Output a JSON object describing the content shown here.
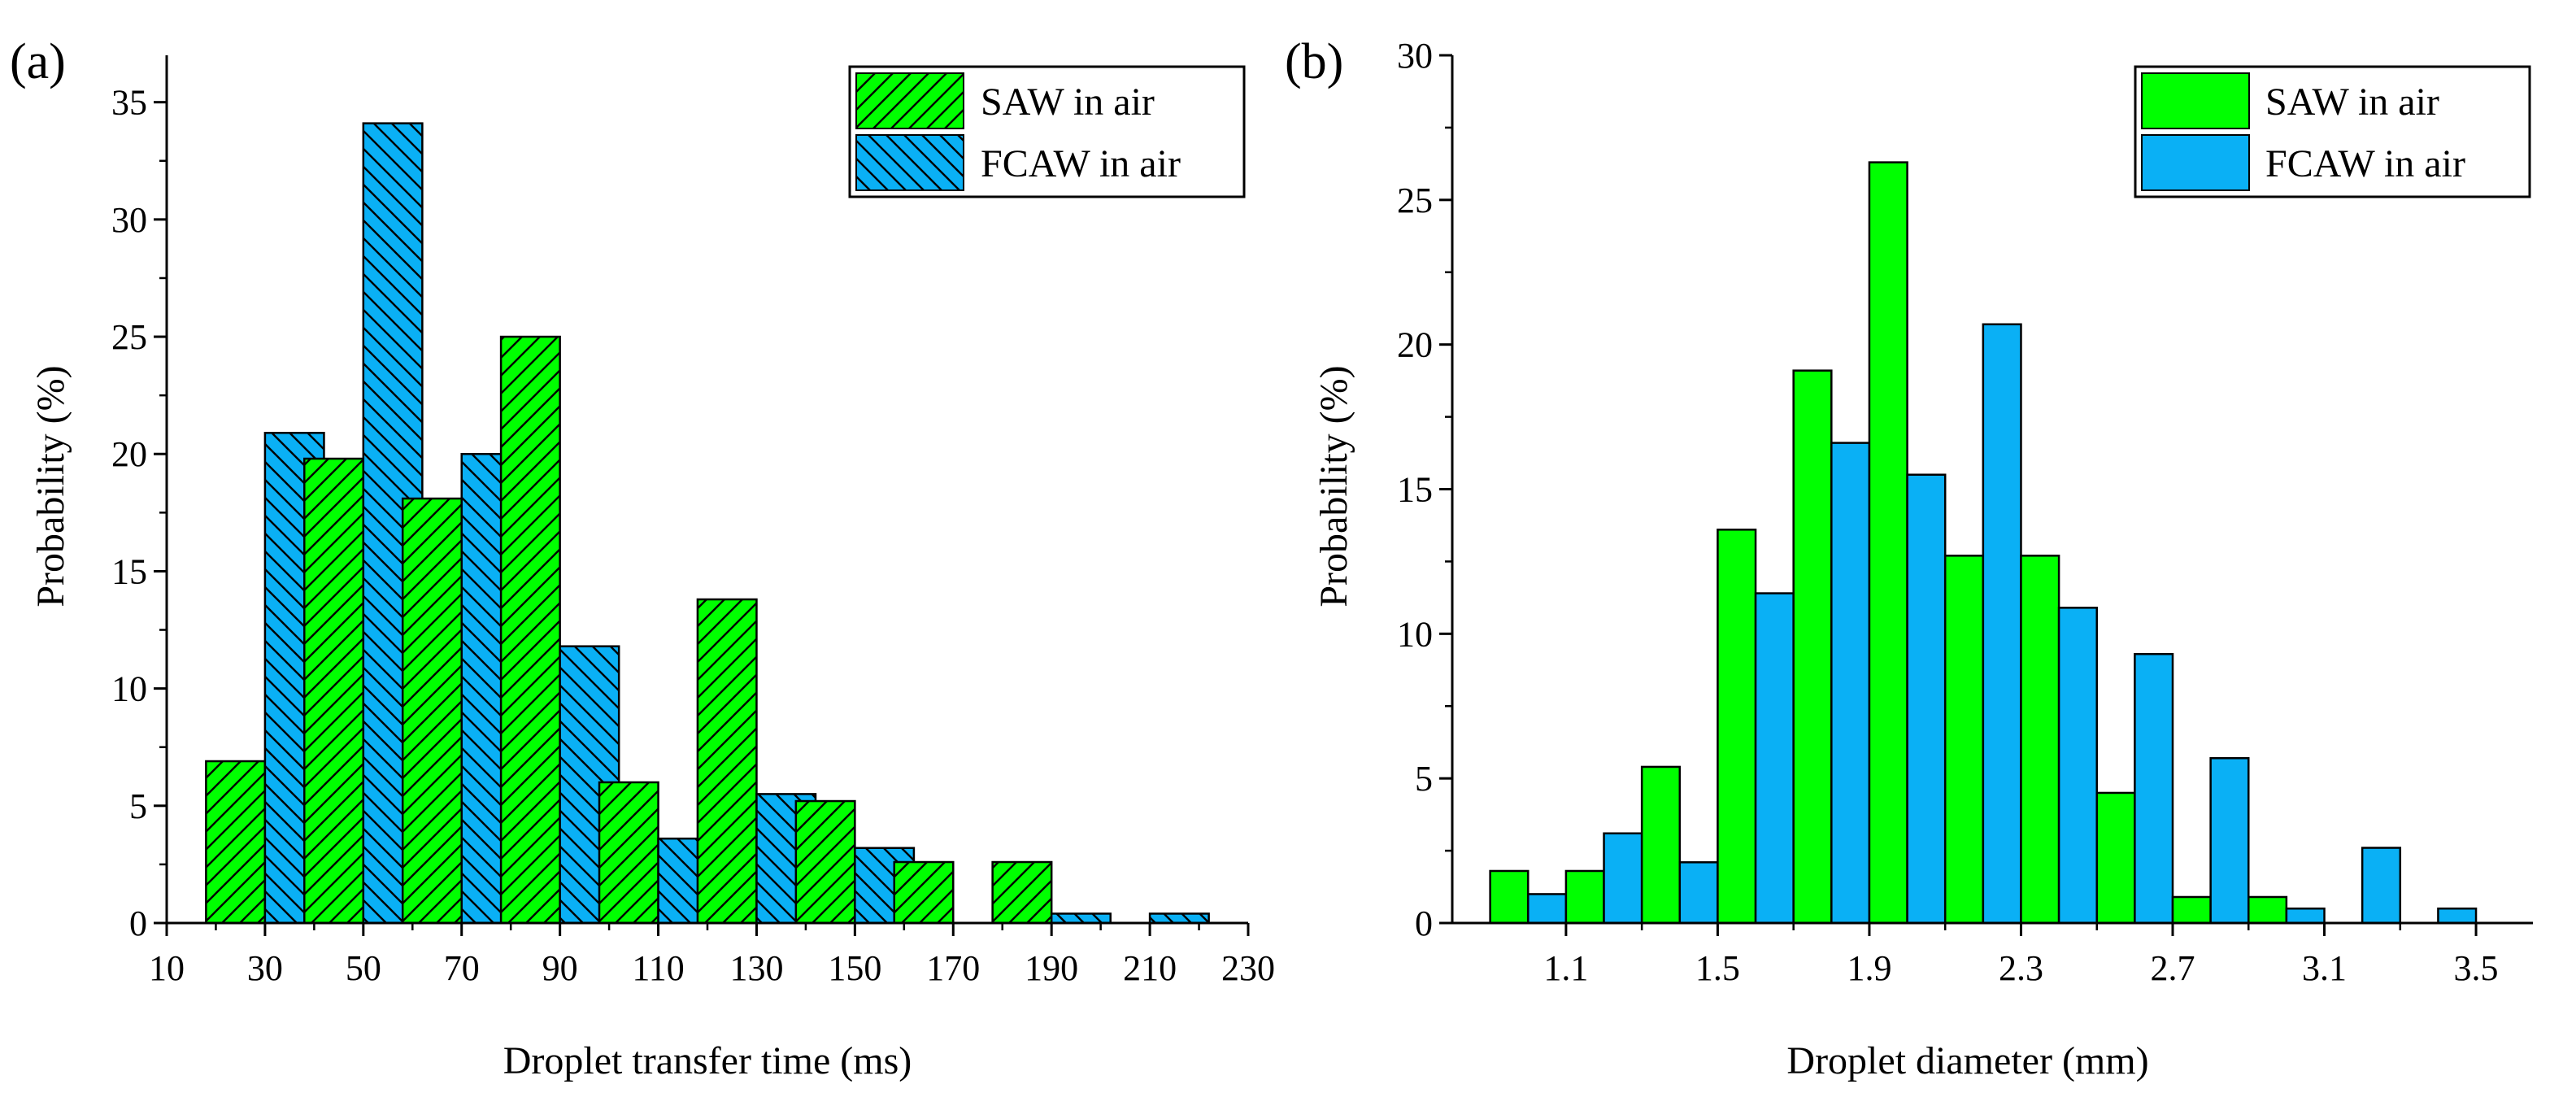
{
  "colors": {
    "saw": "#00ff00",
    "fcaw": "#0ab0f5",
    "axis": "#000000",
    "background": "#ffffff"
  },
  "chart_data": [
    {
      "panel_label": "(a)",
      "type": "bar",
      "pattern": "hatched",
      "title": "",
      "xlabel": "Droplet transfer time (ms)",
      "ylabel": "Probability (%)",
      "xlim": [
        10,
        230
      ],
      "ylim": [
        0,
        37
      ],
      "xticks": [
        "10",
        "30",
        "50",
        "70",
        "90",
        "110",
        "130",
        "150",
        "170",
        "190",
        "210",
        "230"
      ],
      "yticks": [
        "0",
        "5",
        "10",
        "15",
        "20",
        "25",
        "30",
        "35"
      ],
      "categories": [
        30,
        50,
        70,
        90,
        110,
        130,
        150,
        170,
        190,
        210
      ],
      "bin_width": 12,
      "legend_position": "top-right",
      "series": [
        {
          "name": "SAW in air",
          "color": "#00ff00",
          "values": [
            6.9,
            19.8,
            18.1,
            25.0,
            6.0,
            13.8,
            5.2,
            2.6,
            2.6,
            0
          ]
        },
        {
          "name": "FCAW in air",
          "color": "#0ab0f5",
          "values": [
            20.9,
            34.1,
            20.0,
            11.8,
            3.6,
            5.5,
            3.2,
            0,
            0.4,
            0.4
          ]
        }
      ]
    },
    {
      "panel_label": "(b)",
      "type": "bar",
      "pattern": "solid",
      "title": "",
      "xlabel": "Droplet diameter (mm)",
      "ylabel": "Probability (%)",
      "xlim": [
        0.8,
        3.65
      ],
      "ylim": [
        0,
        30
      ],
      "xticks": [
        "1.1",
        "1.5",
        "1.9",
        "2.3",
        "2.7",
        "3.1",
        "3.5"
      ],
      "yticks": [
        "0",
        "5",
        "10",
        "15",
        "20",
        "25",
        "30"
      ],
      "categories": [
        1.0,
        1.2,
        1.4,
        1.6,
        1.8,
        2.0,
        2.2,
        2.4,
        2.6,
        2.8,
        3.0,
        3.2,
        3.4
      ],
      "bin_width": 0.1,
      "legend_position": "top-right",
      "series": [
        {
          "name": "SAW in air",
          "color": "#00ff00",
          "values": [
            1.8,
            1.8,
            5.4,
            13.6,
            19.1,
            26.3,
            12.7,
            12.7,
            4.5,
            0.9,
            0.9,
            0,
            0
          ]
        },
        {
          "name": "FCAW in air",
          "color": "#0ab0f5",
          "values": [
            1.0,
            3.1,
            2.1,
            11.4,
            16.6,
            15.5,
            20.7,
            10.9,
            9.3,
            5.7,
            0.5,
            2.6,
            0.5
          ]
        }
      ]
    }
  ]
}
